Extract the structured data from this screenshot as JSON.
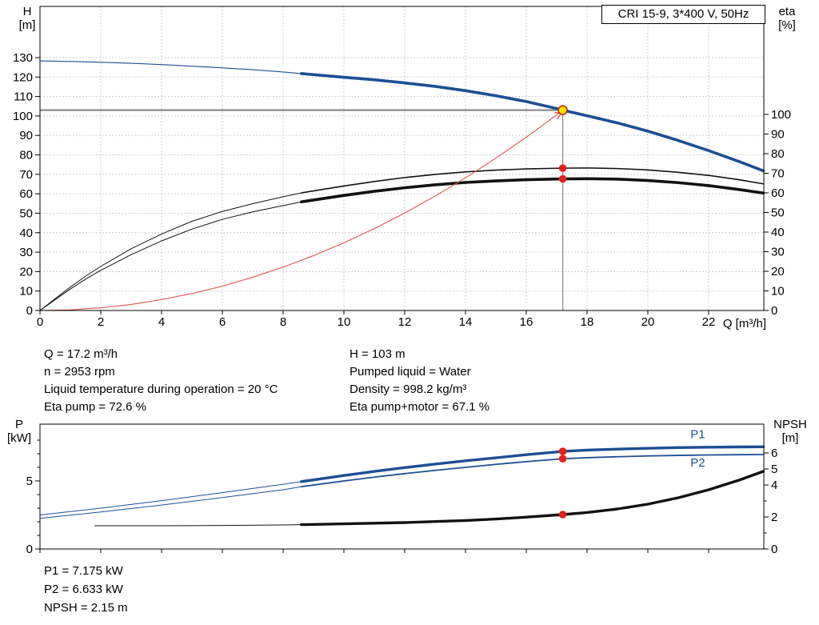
{
  "title_box": {
    "text": "CRI 15-9, 3*400 V, 50Hz"
  },
  "info_top": {
    "left": [
      "Q = 17.2 m³/h",
      "n = 2953 rpm",
      "Liquid temperature during operation = 20 °C",
      "Eta pump = 72.6 %"
    ],
    "right": [
      "H = 103 m",
      "Pumped liquid = Water",
      "Density = 998.2 kg/m³",
      "Eta pump+motor = 67.1 %"
    ]
  },
  "info_bottom": [
    "P1 = 7.175 kW",
    "P2 = 6.633 kW",
    "NPSH = 2.15 m"
  ],
  "chart_data": [
    {
      "id": "qh-chart",
      "type": "line",
      "title": "CRI 15-9, 3*400 V, 50Hz",
      "grid": true,
      "axis_labels": {
        "left": [
          "H",
          "[m]"
        ],
        "right": [
          "eta",
          "[%]"
        ],
        "x": "Q [m³/h]"
      },
      "x": {
        "label": "Q [m³/h]",
        "min": 0,
        "max": 23.8,
        "ticks": [
          0,
          2,
          4,
          6,
          8,
          10,
          12,
          14,
          16,
          18,
          20,
          22
        ]
      },
      "y_left": {
        "axis": "H",
        "label": "H [m]",
        "min": 0,
        "max": 156,
        "ticks": [
          0,
          10,
          20,
          30,
          40,
          50,
          60,
          70,
          80,
          90,
          100,
          110,
          120,
          130
        ],
        "minor": []
      },
      "y_right": {
        "axis": "eta",
        "label": "eta [%]",
        "min": 0,
        "max": 100,
        "ticks": [
          0,
          10,
          20,
          30,
          40,
          50,
          60,
          70,
          80,
          90,
          100
        ],
        "minor": []
      },
      "crosshair": {
        "q": 17.2,
        "axis": "H",
        "value": 103,
        "color": "#8c8c8c"
      },
      "series": [
        {
          "name": "hq-curve-low-flow",
          "axis": "H",
          "color": "#1b4f94",
          "width": 1.1,
          "points": [
            [
              0,
              128.3
            ],
            [
              1,
              128.0
            ],
            [
              2,
              127.6
            ],
            [
              3,
              127.1
            ],
            [
              4,
              126.4
            ],
            [
              5,
              125.6
            ],
            [
              6,
              124.7
            ],
            [
              7,
              123.8
            ],
            [
              8,
              122.6
            ],
            [
              8.6,
              121.8
            ]
          ]
        },
        {
          "name": "hq-curve",
          "axis": "H",
          "color": "#1b4f94",
          "width": 3.6,
          "points": [
            [
              8.6,
              121.8
            ],
            [
              10,
              119.9
            ],
            [
              11,
              118.6
            ],
            [
              12,
              117.0
            ],
            [
              13,
              115.2
            ],
            [
              14,
              113.0
            ],
            [
              15,
              110.4
            ],
            [
              16,
              107.4
            ],
            [
              17,
              103.8
            ],
            [
              17.2,
              103.0
            ],
            [
              18,
              100.1
            ],
            [
              19,
              96.4
            ],
            [
              20,
              92.2
            ],
            [
              21,
              87.4
            ],
            [
              22,
              82.2
            ],
            [
              23,
              76.6
            ],
            [
              23.8,
              71.8
            ]
          ]
        },
        {
          "name": "eta-pump-low-flow",
          "axis": "eta",
          "color": "#111111",
          "width": 1,
          "points": [
            [
              0,
              0
            ],
            [
              0.5,
              6
            ],
            [
              1,
              12
            ],
            [
              1.5,
              17.5
            ],
            [
              2,
              22.5
            ],
            [
              3,
              31.5
            ],
            [
              4,
              39
            ],
            [
              5,
              45.5
            ],
            [
              6,
              50.5
            ],
            [
              7,
              54.5
            ],
            [
              8,
              58
            ],
            [
              8.6,
              60
            ]
          ]
        },
        {
          "name": "eta-pump-curve",
          "axis": "eta",
          "color": "#111111",
          "width": 1.6,
          "points": [
            [
              8.6,
              60
            ],
            [
              10,
              63.5
            ],
            [
              11,
              65.8
            ],
            [
              12,
              67.8
            ],
            [
              13,
              69.4
            ],
            [
              14,
              70.7
            ],
            [
              15,
              71.6
            ],
            [
              16,
              72.2
            ],
            [
              17,
              72.55
            ],
            [
              17.2,
              72.6
            ],
            [
              18,
              72.7
            ],
            [
              19,
              72.4
            ],
            [
              20,
              71.7
            ],
            [
              21,
              70.5
            ],
            [
              22,
              68.9
            ],
            [
              23,
              66.7
            ],
            [
              23.8,
              64.6
            ]
          ]
        },
        {
          "name": "eta-pump-motor-low-flow",
          "axis": "eta",
          "color": "#111111",
          "width": 1,
          "points": [
            [
              0,
              0
            ],
            [
              0.5,
              5.5
            ],
            [
              1,
              11
            ],
            [
              1.5,
              16
            ],
            [
              2,
              20.5
            ],
            [
              3,
              28.5
            ],
            [
              4,
              35.5
            ],
            [
              5,
              41.5
            ],
            [
              6,
              46.5
            ],
            [
              7,
              50.3
            ],
            [
              8,
              53.5
            ],
            [
              8.6,
              55.4
            ]
          ]
        },
        {
          "name": "eta-pump-motor-curve",
          "axis": "eta",
          "color": "#111111",
          "width": 3.6,
          "points": [
            [
              8.6,
              55.4
            ],
            [
              10,
              58.7
            ],
            [
              11,
              60.8
            ],
            [
              12,
              62.6
            ],
            [
              13,
              64.1
            ],
            [
              14,
              65.3
            ],
            [
              15,
              66.1
            ],
            [
              16,
              66.7
            ],
            [
              17,
              67.05
            ],
            [
              17.2,
              67.1
            ],
            [
              18,
              67.2
            ],
            [
              19,
              67.0
            ],
            [
              20,
              66.3
            ],
            [
              21,
              65.2
            ],
            [
              22,
              63.7
            ],
            [
              23,
              61.7
            ],
            [
              23.8,
              59.9
            ]
          ]
        },
        {
          "name": "system-curve",
          "axis": "H",
          "color": "#e05252",
          "width": 1.1,
          "points": [
            [
              0,
              0
            ],
            [
              1,
              0.35
            ],
            [
              2,
              1.4
            ],
            [
              3,
              3.1
            ],
            [
              4,
              5.6
            ],
            [
              5,
              8.7
            ],
            [
              6,
              12.5
            ],
            [
              7,
              17.1
            ],
            [
              8,
              22.3
            ],
            [
              9,
              28.2
            ],
            [
              10,
              34.8
            ],
            [
              11,
              42.1
            ],
            [
              12,
              50.1
            ],
            [
              13,
              58.8
            ],
            [
              14,
              68.2
            ],
            [
              15,
              78.3
            ],
            [
              16,
              89.1
            ],
            [
              16.5,
              94.8
            ],
            [
              17,
              100.6
            ],
            [
              17.2,
              103
            ]
          ]
        }
      ],
      "markers": [
        {
          "type": "arrowhead",
          "name": "system-curve-arrow",
          "q": 17.2,
          "axis": "H",
          "value": 103,
          "color": "#d83434"
        },
        {
          "type": "dot",
          "name": "duty-point",
          "q": 17.2,
          "axis": "H",
          "value": 103,
          "r": 5.5,
          "fill": "#ffe200",
          "stroke": "#bb2200",
          "sw": 1.5
        },
        {
          "type": "dot",
          "name": "eta-pump-point",
          "q": 17.2,
          "axis": "eta",
          "value": 72.6,
          "r": 4.8,
          "fill": "#e3201b"
        },
        {
          "type": "dot",
          "name": "eta-pump-motor-point",
          "q": 17.2,
          "axis": "eta",
          "value": 67.1,
          "r": 4.8,
          "fill": "#e3201b"
        }
      ],
      "plot_labels": []
    },
    {
      "id": "power-npsh-chart",
      "type": "line",
      "title": "",
      "grid": false,
      "axis_labels": {
        "left": [
          "P",
          "[kW]"
        ],
        "right": [
          "NPSH",
          "[m]"
        ],
        "x": ""
      },
      "x": {
        "label": "",
        "min": 0,
        "max": 23.8,
        "ticks": [
          0,
          2,
          4,
          6,
          8,
          10,
          12,
          14,
          16,
          18,
          20,
          22
        ]
      },
      "y_left": {
        "axis": "P",
        "label": "P [kW]",
        "min": 0,
        "max": 9.2,
        "ticks": [
          0,
          5
        ],
        "minor": [
          1,
          2,
          3,
          4,
          6,
          7,
          8
        ]
      },
      "y_right": {
        "axis": "NPSH",
        "label": "NPSH [m]",
        "min": 0,
        "max": 7.8,
        "ticks": [
          0,
          2,
          4,
          5,
          6
        ],
        "minor": [
          1,
          3
        ]
      },
      "series": [
        {
          "name": "p1-low-flow",
          "axis": "P",
          "color": "#1b4f94",
          "width": 1,
          "points": [
            [
              0,
              2.5
            ],
            [
              2,
              3.0
            ],
            [
              4,
              3.55
            ],
            [
              6,
              4.14
            ],
            [
              8,
              4.76
            ],
            [
              8.6,
              4.95
            ]
          ]
        },
        {
          "name": "p1-curve",
          "axis": "P",
          "color": "#1b4f94",
          "width": 3.4,
          "points": [
            [
              8.6,
              4.95
            ],
            [
              10,
              5.4
            ],
            [
              11,
              5.7
            ],
            [
              12,
              5.98
            ],
            [
              13,
              6.24
            ],
            [
              14,
              6.48
            ],
            [
              15,
              6.7
            ],
            [
              16,
              6.93
            ],
            [
              17.2,
              7.175
            ],
            [
              18,
              7.27
            ],
            [
              19,
              7.34
            ],
            [
              20,
              7.4
            ],
            [
              21,
              7.45
            ],
            [
              22,
              7.48
            ],
            [
              23,
              7.5
            ],
            [
              23.8,
              7.51
            ]
          ]
        },
        {
          "name": "p2-low-flow",
          "axis": "P",
          "color": "#1b4f94",
          "width": 1,
          "points": [
            [
              0,
              2.25
            ],
            [
              2,
              2.72
            ],
            [
              4,
              3.23
            ],
            [
              6,
              3.78
            ],
            [
              8,
              4.35
            ],
            [
              8.6,
              4.58
            ]
          ]
        },
        {
          "name": "p2-curve",
          "axis": "P",
          "color": "#1b4f94",
          "width": 1.8,
          "points": [
            [
              8.6,
              4.58
            ],
            [
              10,
              5.0
            ],
            [
              11,
              5.28
            ],
            [
              12,
              5.54
            ],
            [
              13,
              5.78
            ],
            [
              14,
              6.0
            ],
            [
              15,
              6.22
            ],
            [
              16,
              6.42
            ],
            [
              17.2,
              6.633
            ],
            [
              18,
              6.71
            ],
            [
              19,
              6.78
            ],
            [
              20,
              6.84
            ],
            [
              21,
              6.88
            ],
            [
              22,
              6.91
            ],
            [
              23,
              6.93
            ],
            [
              23.8,
              6.94
            ]
          ]
        },
        {
          "name": "npsh-low-flow",
          "axis": "NPSH",
          "color": "#111111",
          "width": 1,
          "points": [
            [
              1.8,
              1.45
            ],
            [
              4,
              1.45
            ],
            [
              6,
              1.47
            ],
            [
              8,
              1.5
            ],
            [
              8.6,
              1.52
            ]
          ]
        },
        {
          "name": "npsh-curve",
          "axis": "NPSH",
          "color": "#111111",
          "width": 3.4,
          "points": [
            [
              8.6,
              1.52
            ],
            [
              10,
              1.57
            ],
            [
              12,
              1.65
            ],
            [
              14,
              1.78
            ],
            [
              15,
              1.87
            ],
            [
              16,
              1.99
            ],
            [
              17.2,
              2.15
            ],
            [
              18,
              2.28
            ],
            [
              19,
              2.5
            ],
            [
              20,
              2.8
            ],
            [
              21,
              3.2
            ],
            [
              22,
              3.7
            ],
            [
              23,
              4.3
            ],
            [
              23.8,
              4.85
            ]
          ]
        }
      ],
      "markers": [
        {
          "type": "dot",
          "name": "p1-point",
          "q": 17.2,
          "axis": "P",
          "value": 7.175,
          "r": 4.8,
          "fill": "#e3201b"
        },
        {
          "type": "dot",
          "name": "p2-point",
          "q": 17.2,
          "axis": "P",
          "value": 6.633,
          "r": 4.8,
          "fill": "#e3201b"
        },
        {
          "type": "dot",
          "name": "npsh-point",
          "q": 17.2,
          "axis": "NPSH",
          "value": 2.15,
          "r": 4.8,
          "fill": "#e3201b"
        }
      ],
      "plot_labels": [
        {
          "text": "P1",
          "q": 21.4,
          "axis": "P",
          "value": 8.15,
          "color": "#1b4f94"
        },
        {
          "text": "P2",
          "q": 21.4,
          "axis": "P",
          "value": 6.05,
          "color": "#1b4f94"
        }
      ]
    }
  ]
}
